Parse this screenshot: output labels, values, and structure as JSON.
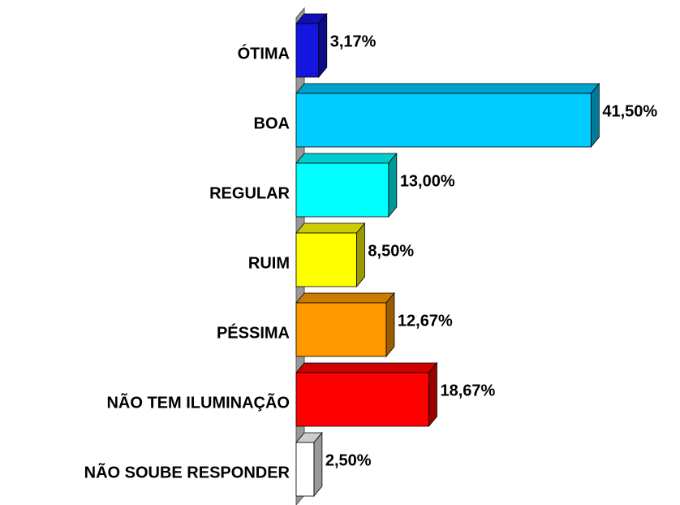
{
  "chart_data": {
    "type": "hbar3d",
    "categories": [
      "ÓTIMA",
      "BOA",
      "REGULAR",
      "RUIM",
      "PÉSSIMA",
      "NÃO TEM ILUMINAÇÃO",
      "NÃO SOUBE RESPONDER"
    ],
    "values": [
      3.17,
      41.5,
      13,
      8.5,
      12.67,
      18.67,
      2.5
    ],
    "value_labels": [
      "3,17%",
      "41,50%",
      "13,00%",
      "8,50%",
      "12,67%",
      "18,67%",
      "2,50%"
    ],
    "colors": [
      "#1515e0",
      "#00ccff",
      "#00ffff",
      "#ffff00",
      "#ff9900",
      "#ff0000",
      "#ffffff"
    ],
    "xlim": [
      0,
      45
    ]
  }
}
